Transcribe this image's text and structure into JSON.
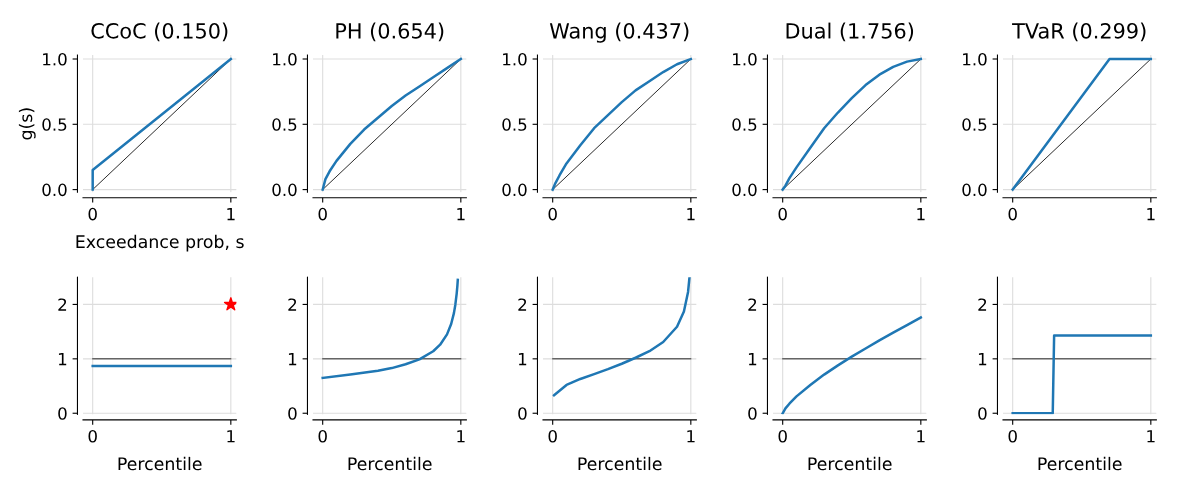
{
  "chart_data": [
    {
      "type": "line",
      "title": "CCoC (0.150)",
      "xlabel": "Exceedance prob, s",
      "ylabel": "g(s)",
      "xlim": [
        -0.07,
        1.04
      ],
      "ylim": [
        -0.02,
        1.03
      ],
      "xticks": [
        0,
        1
      ],
      "yticks": [
        {
          "value": 0,
          "label": "0.0"
        },
        {
          "value": 0.5,
          "label": "0.5"
        },
        {
          "value": 1,
          "label": "1.0"
        }
      ],
      "grid": true,
      "marker": "none",
      "series": [
        {
          "color": "#000000",
          "x": [
            0,
            1
          ],
          "values": [
            0,
            1
          ]
        },
        {
          "color": "#1f77b4",
          "x": [
            0,
            0,
            1
          ],
          "values": [
            0,
            0.15,
            1
          ]
        }
      ]
    },
    {
      "type": "line",
      "title": "PH (0.654)",
      "xlim": [
        -0.07,
        1.04
      ],
      "ylim": [
        -0.02,
        1.03
      ],
      "xticks": [
        0,
        1
      ],
      "yticks": [
        {
          "value": 0,
          "label": "0.0"
        },
        {
          "value": 0.5,
          "label": "0.5"
        },
        {
          "value": 1,
          "label": "1.0"
        }
      ],
      "grid": true,
      "marker": "none",
      "series": [
        {
          "color": "#000000",
          "x": [
            0,
            1
          ],
          "values": [
            0,
            1
          ]
        },
        {
          "color": "#1f77b4",
          "x": [
            0,
            0.02,
            0.05,
            0.1,
            0.2,
            0.3,
            0.4,
            0.5,
            0.6,
            0.7,
            0.8,
            0.9,
            1
          ],
          "values": [
            0,
            0.08,
            0.14,
            0.22,
            0.35,
            0.46,
            0.55,
            0.64,
            0.72,
            0.79,
            0.86,
            0.93,
            1
          ]
        }
      ]
    },
    {
      "type": "line",
      "title": "Wang (0.437)",
      "xlim": [
        -0.07,
        1.04
      ],
      "ylim": [
        -0.02,
        1.03
      ],
      "xticks": [
        0,
        1
      ],
      "yticks": [
        {
          "value": 0,
          "label": "0.0"
        },
        {
          "value": 0.5,
          "label": "0.5"
        },
        {
          "value": 1,
          "label": "1.0"
        }
      ],
      "grid": true,
      "marker": "none",
      "series": [
        {
          "color": "#000000",
          "x": [
            0,
            1
          ],
          "values": [
            0,
            1
          ]
        },
        {
          "color": "#1f77b4",
          "x": [
            0,
            0.02,
            0.05,
            0.1,
            0.2,
            0.3,
            0.4,
            0.5,
            0.6,
            0.7,
            0.8,
            0.9,
            1
          ],
          "values": [
            0,
            0.05,
            0.11,
            0.2,
            0.34,
            0.47,
            0.57,
            0.67,
            0.76,
            0.83,
            0.9,
            0.96,
            1
          ]
        }
      ]
    },
    {
      "type": "line",
      "title": "Dual (1.756)",
      "xlim": [
        -0.07,
        1.04
      ],
      "ylim": [
        -0.02,
        1.03
      ],
      "xticks": [
        0,
        1
      ],
      "yticks": [
        {
          "value": 0,
          "label": "0.0"
        },
        {
          "value": 0.5,
          "label": "0.5"
        },
        {
          "value": 1,
          "label": "1.0"
        }
      ],
      "grid": true,
      "marker": "none",
      "series": [
        {
          "color": "#000000",
          "x": [
            0,
            1
          ],
          "values": [
            0,
            1
          ]
        },
        {
          "color": "#1f77b4",
          "x": [
            0,
            0.02,
            0.05,
            0.1,
            0.2,
            0.3,
            0.4,
            0.5,
            0.6,
            0.7,
            0.8,
            0.9,
            1
          ],
          "values": [
            0,
            0.03,
            0.09,
            0.17,
            0.32,
            0.47,
            0.59,
            0.7,
            0.8,
            0.88,
            0.94,
            0.98,
            1
          ]
        }
      ]
    },
    {
      "type": "line",
      "title": "TVaR (0.299)",
      "xlim": [
        -0.07,
        1.04
      ],
      "ylim": [
        -0.02,
        1.03
      ],
      "xticks": [
        0,
        1
      ],
      "yticks": [
        {
          "value": 0,
          "label": "0.0"
        },
        {
          "value": 0.5,
          "label": "0.5"
        },
        {
          "value": 1,
          "label": "1.0"
        }
      ],
      "grid": true,
      "marker": "none",
      "series": [
        {
          "color": "#000000",
          "x": [
            0,
            1
          ],
          "values": [
            0,
            1
          ]
        },
        {
          "color": "#1f77b4",
          "x": [
            0,
            0.701,
            1
          ],
          "values": [
            0,
            1,
            1
          ]
        }
      ]
    },
    {
      "type": "line",
      "xlabel": "Percentile",
      "xlim": [
        -0.07,
        1.04
      ],
      "ylim": [
        -0.02,
        2.5
      ],
      "xticks": [
        0,
        1
      ],
      "yticks": [
        0,
        1,
        2
      ],
      "grid": true,
      "marker": "none",
      "series": [
        {
          "color": "#000000",
          "x": [
            0,
            1
          ],
          "values": [
            1,
            1
          ]
        },
        {
          "color": "#1f77b4",
          "x": [
            0,
            1
          ],
          "values": [
            0.87,
            0.87
          ]
        },
        {
          "type": "scatter",
          "marker": "star",
          "color": "#ff0000",
          "x": [
            1
          ],
          "values": [
            2
          ]
        }
      ]
    },
    {
      "type": "line",
      "xlabel": "Percentile",
      "xlim": [
        -0.07,
        1.04
      ],
      "ylim": [
        -0.02,
        2.5
      ],
      "xticks": [
        0,
        1
      ],
      "yticks": [
        0,
        1,
        2
      ],
      "grid": true,
      "marker": "none",
      "series": [
        {
          "color": "#000000",
          "x": [
            0,
            1
          ],
          "values": [
            1,
            1
          ]
        },
        {
          "color": "#1f77b4",
          "x": [
            0,
            0.2,
            0.4,
            0.5,
            0.6,
            0.7,
            0.8,
            0.85,
            0.9,
            0.93,
            0.95,
            0.96,
            0.97,
            0.975,
            0.978
          ],
          "values": [
            0.65,
            0.71,
            0.78,
            0.83,
            0.9,
            0.99,
            1.14,
            1.26,
            1.45,
            1.64,
            1.84,
            1.99,
            2.2,
            2.34,
            2.45
          ]
        }
      ]
    },
    {
      "type": "line",
      "xlabel": "Percentile",
      "xlim": [
        -0.07,
        1.04
      ],
      "ylim": [
        -0.02,
        2.5
      ],
      "xticks": [
        0,
        1
      ],
      "yticks": [
        0,
        1,
        2
      ],
      "grid": true,
      "marker": "none",
      "series": [
        {
          "color": "#000000",
          "x": [
            0,
            1
          ],
          "values": [
            1,
            1
          ]
        },
        {
          "color": "#1f77b4",
          "x": [
            0.01,
            0.1,
            0.2,
            0.3,
            0.4,
            0.5,
            0.6,
            0.7,
            0.8,
            0.9,
            0.95,
            0.98,
            0.99
          ],
          "values": [
            0.33,
            0.52,
            0.63,
            0.72,
            0.81,
            0.91,
            1.02,
            1.14,
            1.31,
            1.59,
            1.87,
            2.23,
            2.49
          ]
        }
      ]
    },
    {
      "type": "line",
      "xlabel": "Percentile",
      "xlim": [
        -0.07,
        1.04
      ],
      "ylim": [
        -0.02,
        2.5
      ],
      "xticks": [
        0,
        1
      ],
      "yticks": [
        0,
        1,
        2
      ],
      "grid": true,
      "marker": "none",
      "series": [
        {
          "color": "#000000",
          "x": [
            0,
            1
          ],
          "values": [
            1,
            1
          ]
        },
        {
          "color": "#1f77b4",
          "x": [
            0,
            0.02,
            0.05,
            0.1,
            0.2,
            0.3,
            0.4,
            0.5,
            0.6,
            0.7,
            0.8,
            0.9,
            1
          ],
          "values": [
            0,
            0.09,
            0.18,
            0.31,
            0.52,
            0.71,
            0.88,
            1.04,
            1.19,
            1.34,
            1.48,
            1.62,
            1.76
          ]
        }
      ]
    },
    {
      "type": "line",
      "xlabel": "Percentile",
      "xlim": [
        -0.07,
        1.04
      ],
      "ylim": [
        -0.02,
        2.5
      ],
      "xticks": [
        0,
        1
      ],
      "yticks": [
        0,
        1,
        2
      ],
      "grid": true,
      "marker": "none",
      "series": [
        {
          "color": "#000000",
          "x": [
            0,
            1
          ],
          "values": [
            1,
            1
          ]
        },
        {
          "color": "#1f77b4",
          "x": [
            0,
            0.29,
            0.3,
            1
          ],
          "values": [
            0,
            0,
            1.43,
            1.43
          ]
        }
      ]
    }
  ]
}
